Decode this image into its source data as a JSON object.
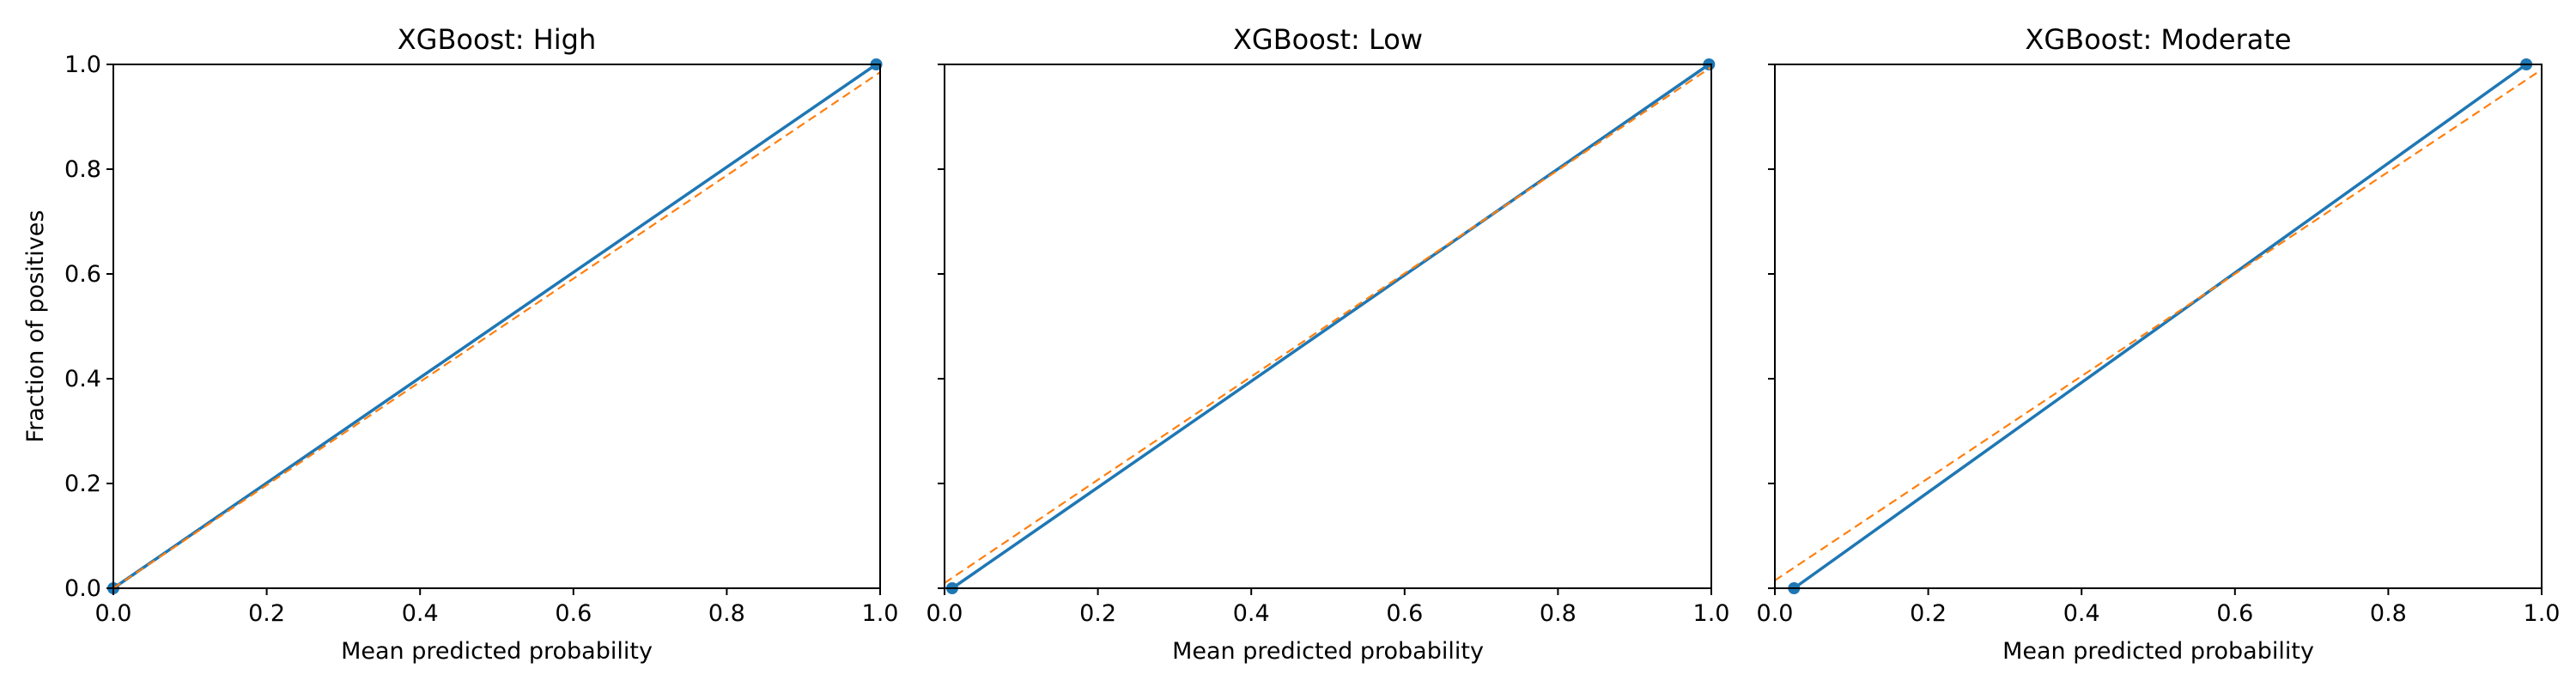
{
  "chart_data": [
    {
      "type": "line",
      "title": "XGBoost: High",
      "xlabel": "Mean predicted probability",
      "ylabel": "Fraction of positives",
      "xlim": [
        0.0,
        1.0
      ],
      "ylim": [
        0.0,
        1.0
      ],
      "x_ticks": [
        "0.0",
        "0.2",
        "0.4",
        "0.6",
        "0.8",
        "1.0"
      ],
      "y_ticks": [
        "0.0",
        "0.2",
        "0.4",
        "0.6",
        "0.8",
        "1.0"
      ],
      "show_y_tick_labels": true,
      "grid": false,
      "series": [
        {
          "x": [
            0.0,
            0.995
          ],
          "y": [
            0.0,
            1.0
          ],
          "color": "#1f77b4",
          "style": "solid",
          "markers": true
        },
        {
          "x": [
            0.0,
            1.0
          ],
          "y": [
            0.0,
            0.985
          ],
          "color": "#ff7f0e",
          "style": "dashed",
          "markers": false
        }
      ]
    },
    {
      "type": "line",
      "title": "XGBoost: Low",
      "xlabel": "Mean predicted probability",
      "ylabel": "",
      "xlim": [
        0.0,
        1.0
      ],
      "ylim": [
        0.0,
        1.0
      ],
      "x_ticks": [
        "0.0",
        "0.2",
        "0.4",
        "0.6",
        "0.8",
        "1.0"
      ],
      "y_ticks": [
        "0.0",
        "0.2",
        "0.4",
        "0.6",
        "0.8",
        "1.0"
      ],
      "show_y_tick_labels": false,
      "grid": false,
      "series": [
        {
          "x": [
            0.01,
            0.997
          ],
          "y": [
            0.0,
            1.0
          ],
          "color": "#1f77b4",
          "style": "solid",
          "markers": true
        },
        {
          "x": [
            0.0,
            1.0
          ],
          "y": [
            0.01,
            0.995
          ],
          "color": "#ff7f0e",
          "style": "dashed",
          "markers": false
        }
      ]
    },
    {
      "type": "line",
      "title": "XGBoost: Moderate",
      "xlabel": "Mean predicted probability",
      "ylabel": "",
      "xlim": [
        0.0,
        1.0
      ],
      "ylim": [
        0.0,
        1.0
      ],
      "x_ticks": [
        "0.0",
        "0.2",
        "0.4",
        "0.6",
        "0.8",
        "1.0"
      ],
      "y_ticks": [
        "0.0",
        "0.2",
        "0.4",
        "0.6",
        "0.8",
        "1.0"
      ],
      "show_y_tick_labels": false,
      "grid": false,
      "series": [
        {
          "x": [
            0.025,
            0.98
          ],
          "y": [
            0.0,
            1.0
          ],
          "color": "#1f77b4",
          "style": "solid",
          "markers": true
        },
        {
          "x": [
            0.0,
            1.0
          ],
          "y": [
            0.015,
            0.99
          ],
          "color": "#ff7f0e",
          "style": "dashed",
          "markers": false
        }
      ]
    }
  ]
}
